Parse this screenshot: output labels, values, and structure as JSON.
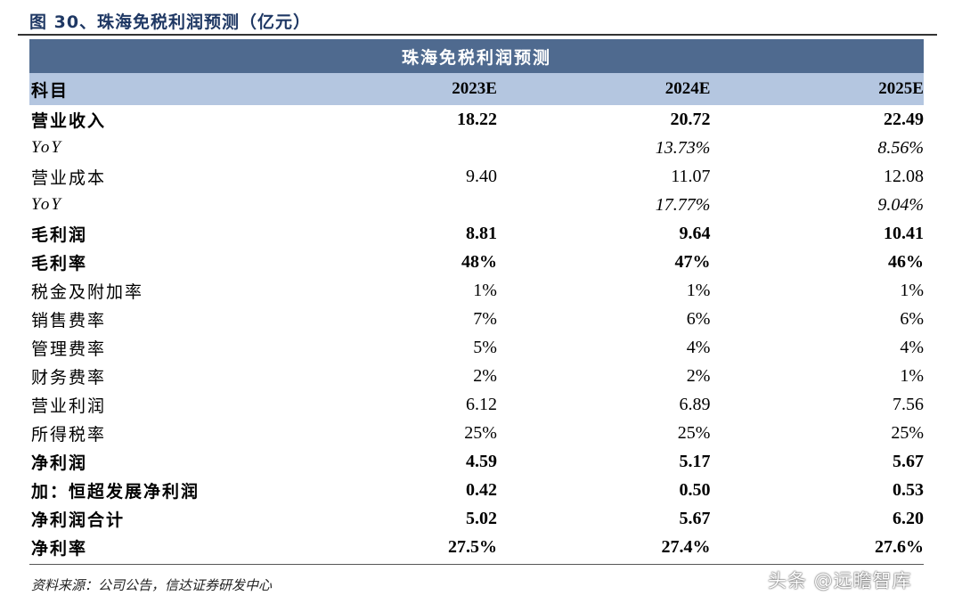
{
  "figure": {
    "title": "图 30、珠海免税利润预测（亿元）",
    "table_title": "珠海免税利润预测",
    "source": "资料来源：公司公告，信达证券研发中心",
    "watermark": "头条 @远瞻智库"
  },
  "table": {
    "header": [
      "科目",
      "2023E",
      "2024E",
      "2025E"
    ],
    "rows": [
      {
        "label": "营业收入",
        "v": [
          "18.22",
          "20.72",
          "22.49"
        ],
        "style": "bold"
      },
      {
        "label": "YoY",
        "v": [
          "",
          "13.73%",
          "8.56%"
        ],
        "style": "italic"
      },
      {
        "label": "营业成本",
        "v": [
          "9.40",
          "11.07",
          "12.08"
        ],
        "style": "normal"
      },
      {
        "label": "YoY",
        "v": [
          "",
          "17.77%",
          "9.04%"
        ],
        "style": "italic"
      },
      {
        "label": "毛利润",
        "v": [
          "8.81",
          "9.64",
          "10.41"
        ],
        "style": "bold"
      },
      {
        "label": "毛利率",
        "v": [
          "48%",
          "47%",
          "46%"
        ],
        "style": "bold"
      },
      {
        "label": "税金及附加率",
        "v": [
          "1%",
          "1%",
          "1%"
        ],
        "style": "normal"
      },
      {
        "label": "销售费率",
        "v": [
          "7%",
          "6%",
          "6%"
        ],
        "style": "normal"
      },
      {
        "label": "管理费率",
        "v": [
          "5%",
          "4%",
          "4%"
        ],
        "style": "normal"
      },
      {
        "label": "财务费率",
        "v": [
          "2%",
          "2%",
          "1%"
        ],
        "style": "normal"
      },
      {
        "label": "营业利润",
        "v": [
          "6.12",
          "6.89",
          "7.56"
        ],
        "style": "normal"
      },
      {
        "label": "所得税率",
        "v": [
          "25%",
          "25%",
          "25%"
        ],
        "style": "normal"
      },
      {
        "label": "净利润",
        "v": [
          "4.59",
          "5.17",
          "5.67"
        ],
        "style": "bold"
      },
      {
        "label": "加：恒超发展净利润",
        "v": [
          "0.42",
          "0.50",
          "0.53"
        ],
        "style": "bold"
      },
      {
        "label": "净利润合计",
        "v": [
          "5.02",
          "5.67",
          "6.20"
        ],
        "style": "bold"
      },
      {
        "label": "净利率",
        "v": [
          "27.5%",
          "27.4%",
          "27.6%"
        ],
        "style": "bold"
      }
    ]
  }
}
